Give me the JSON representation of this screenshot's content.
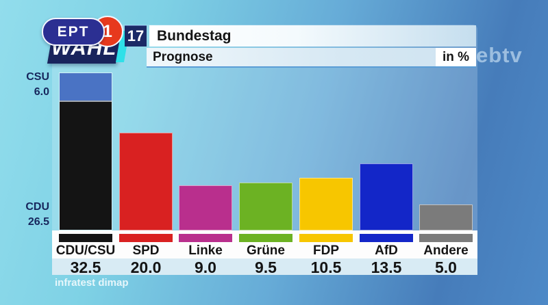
{
  "logo": {
    "channel": "EPT",
    "channel_number": "1",
    "brand": "WAHL",
    "badge": "17"
  },
  "header": {
    "title": "Bundestag",
    "subtitle": "Prognose",
    "unit_label": "in %"
  },
  "watermark_text": "ebtv",
  "side_labels": {
    "top_name": "CSU",
    "top_value": "6.0",
    "bottom_name": "CDU",
    "bottom_value": "26.5"
  },
  "footer": {
    "source": "infratest dimap"
  },
  "chart_data": {
    "type": "bar",
    "title": "Bundestag",
    "subtitle": "Prognose",
    "unit": "in %",
    "categories": [
      "CDU/CSU",
      "SPD",
      "Linke",
      "Grüne",
      "FDP",
      "AfD",
      "Andere"
    ],
    "values": [
      32.5,
      20.0,
      9.0,
      9.5,
      10.5,
      13.5,
      5.0
    ],
    "value_labels": [
      "32.5",
      "20.0",
      "9.0",
      "9.5",
      "10.5",
      "13.5",
      "5.0"
    ],
    "colors": [
      "#141414",
      "#d92121",
      "#b92f8d",
      "#6cb223",
      "#f7c600",
      "#1326c8",
      "#7b7b7b"
    ],
    "stacked_first_bar": {
      "category": "CDU/CSU",
      "segments": [
        {
          "name": "CDU",
          "value": 26.5,
          "color": "#141414"
        },
        {
          "name": "CSU",
          "value": 6.0,
          "color": "#4a73c4"
        }
      ],
      "divider_color": "#a2a8af"
    },
    "ylim": [
      0,
      35
    ],
    "grid": false,
    "legend": false,
    "source": "infratest dimap"
  }
}
